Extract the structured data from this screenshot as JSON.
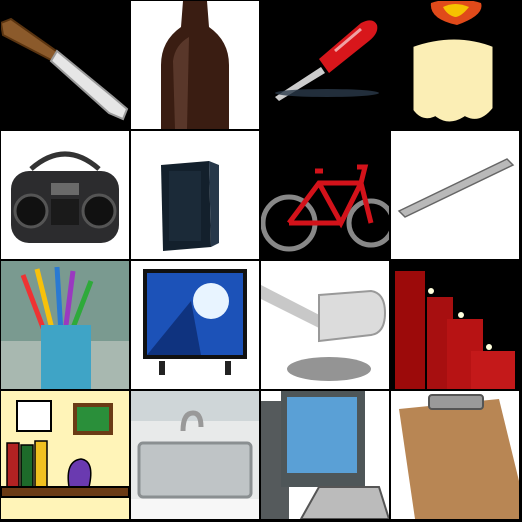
{
  "grid": {
    "rows": 4,
    "columns": 4,
    "tiles": [
      {
        "subject": "knife-icon",
        "background": "#000000"
      },
      {
        "subject": "bottle-icon",
        "background": "#ffffff"
      },
      {
        "subject": "screwdriver-icon",
        "background": "#000000"
      },
      {
        "subject": "candle-icon",
        "background": "#000000"
      },
      {
        "subject": "boombox-icon",
        "background": "#ffffff"
      },
      {
        "subject": "speaker-icon",
        "background": "#ffffff"
      },
      {
        "subject": "bicycle-icon",
        "background": "#000000"
      },
      {
        "subject": "pen-icon",
        "background": "#ffffff"
      },
      {
        "subject": "pencil-cup-icon",
        "background": "#7a9a90"
      },
      {
        "subject": "tv-icon",
        "background": "#ffffff"
      },
      {
        "subject": "gavel-icon",
        "background": "#ffffff"
      },
      {
        "subject": "candles-icon",
        "background": "#000000"
      },
      {
        "subject": "bookshelf-icon",
        "background": "#fff4b8"
      },
      {
        "subject": "sink-icon",
        "background": "#e8eaea"
      },
      {
        "subject": "computer-icon",
        "background": "#ffffff"
      },
      {
        "subject": "clipboard-icon",
        "background": "#ffffff"
      }
    ]
  }
}
